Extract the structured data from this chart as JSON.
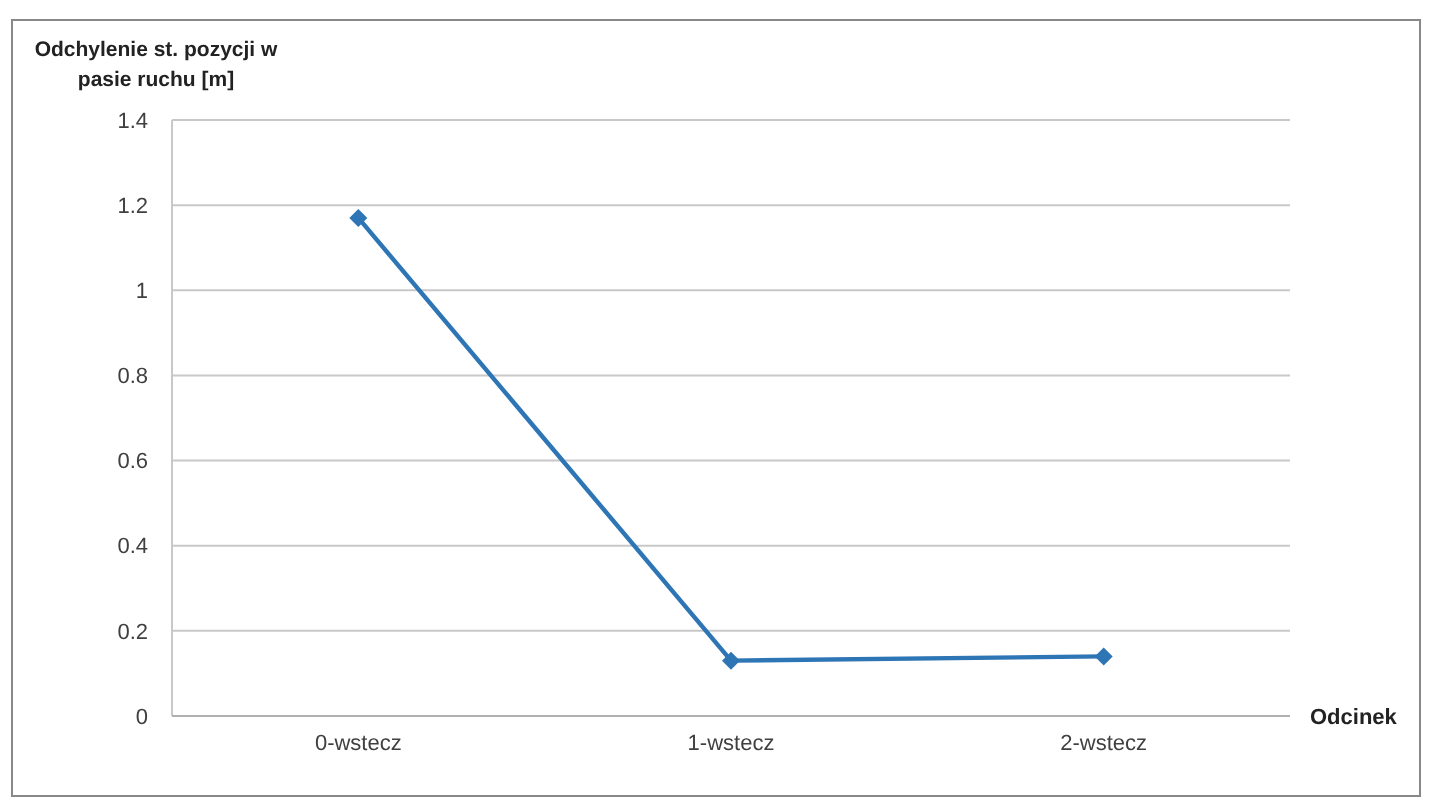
{
  "chart_data": {
    "type": "line",
    "ylabel": "Odchylenie st. pozycji w pasie ruchu [m]",
    "xlabel": "Odcinek",
    "categories": [
      "0-wstecz",
      "1-wstecz",
      "2-wstecz"
    ],
    "series": [
      {
        "color": "#2e75b6",
        "values": [
          1.17,
          0.13,
          0.14
        ]
      }
    ],
    "ylim": [
      0,
      1.4
    ],
    "yticks": [
      0,
      0.2,
      0.4,
      0.6,
      0.8,
      1,
      1.2,
      1.4
    ],
    "grid": "y",
    "marker": "diamond",
    "line_style": "solid"
  }
}
